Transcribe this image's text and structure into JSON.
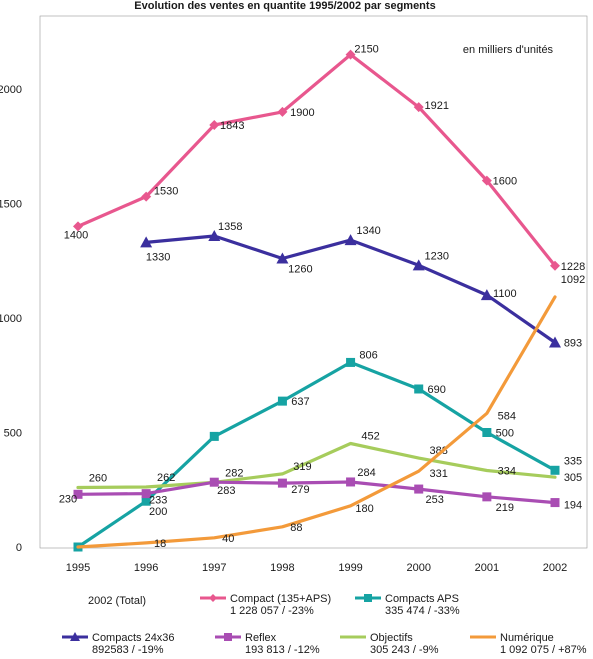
{
  "chart_data": {
    "type": "line",
    "title": "Evolution des ventes en quantite 1995/2002 par segments",
    "unit_note": "en milliers d'unités",
    "x": [
      "1995",
      "1996",
      "1997",
      "1998",
      "1999",
      "2000",
      "2001",
      "2002"
    ],
    "ylim": [
      0,
      2300
    ],
    "yticks": [
      0,
      500,
      1000,
      1500,
      2000
    ],
    "grid": false,
    "legend_heading": "2002 (Total)",
    "series": [
      {
        "name": "Compact (135+APS)",
        "subtitle": "1 228 057 / -23%",
        "color": "#e8578e",
        "marker": "diamond",
        "values": [
          1400,
          1530,
          1843,
          1900,
          2150,
          1921,
          1600,
          1228
        ],
        "labels": [
          "1400",
          "1530",
          "1843",
          "1900",
          "2150",
          "1921",
          "1600",
          "1228"
        ]
      },
      {
        "name": "Compacts 24x36",
        "subtitle": "892583 / -19%",
        "color": "#3b2f9e",
        "marker": "triangle",
        "values": [
          null,
          1330,
          1358,
          1260,
          1340,
          1230,
          1100,
          893
        ],
        "labels": [
          "",
          "1330",
          "1358",
          "1260",
          "1340",
          "1230",
          "1100",
          "893"
        ]
      },
      {
        "name": "Compacts APS",
        "subtitle": "335 474 / -33%",
        "color": "#16a3a3",
        "marker": "square",
        "values": [
          0,
          200,
          483,
          637,
          806,
          690,
          500,
          335
        ],
        "labels": [
          "",
          "200",
          "",
          "637",
          "806",
          "690",
          "500",
          "335"
        ]
      },
      {
        "name": "Objectifs",
        "subtitle": "305 243 / -9%",
        "color": "#a6cc5c",
        "marker": "none",
        "values": [
          260,
          262,
          282,
          319,
          452,
          388,
          334,
          305
        ],
        "labels": [
          "260",
          "262",
          "282",
          "319",
          "452",
          "388",
          "334",
          "305"
        ]
      },
      {
        "name": "Reflex",
        "subtitle": "193 813 / -12%",
        "color": "#a94db3",
        "marker": "square",
        "values": [
          230,
          233,
          283,
          279,
          284,
          253,
          219,
          194
        ],
        "labels": [
          "230",
          "233",
          "283",
          "279",
          "284",
          "253",
          "219",
          "194"
        ]
      },
      {
        "name": "Numérique",
        "subtitle": "1 092 075 / +87%",
        "color": "#f39a3a",
        "marker": "none",
        "values": [
          0,
          18,
          40,
          88,
          180,
          331,
          584,
          1092
        ],
        "labels": [
          "",
          "18",
          "40",
          "88",
          "180",
          "331",
          "584",
          "1092"
        ]
      }
    ]
  }
}
